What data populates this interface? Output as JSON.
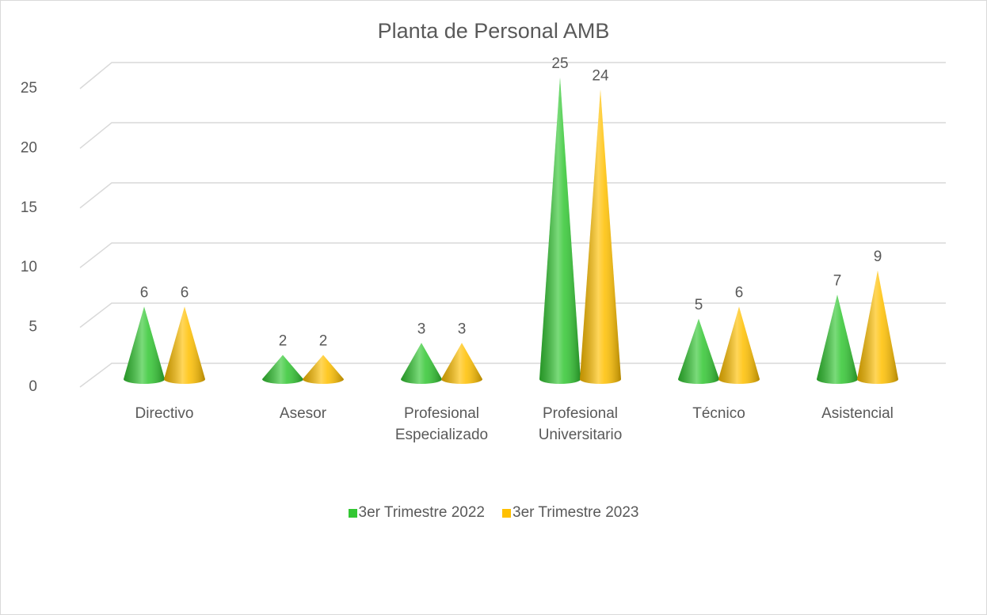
{
  "chart_data": {
    "type": "cone",
    "title": "Planta de Personal AMB",
    "categories": [
      "Directivo",
      "Asesor",
      "Profesional Especializado",
      "Profesional Universitario",
      "Técnico",
      "Asistencial"
    ],
    "series": [
      {
        "name": "3er Trimestre 2022",
        "color": "#33c733",
        "values": [
          6,
          2,
          3,
          25,
          5,
          7
        ]
      },
      {
        "name": "3er Trimestre 2023",
        "color": "#ffc000",
        "values": [
          6,
          2,
          3,
          24,
          6,
          9
        ]
      }
    ],
    "ylim": [
      0,
      25
    ],
    "yticks": [
      0,
      5,
      10,
      15,
      20,
      25
    ],
    "grid": true,
    "legend": "bottom"
  }
}
